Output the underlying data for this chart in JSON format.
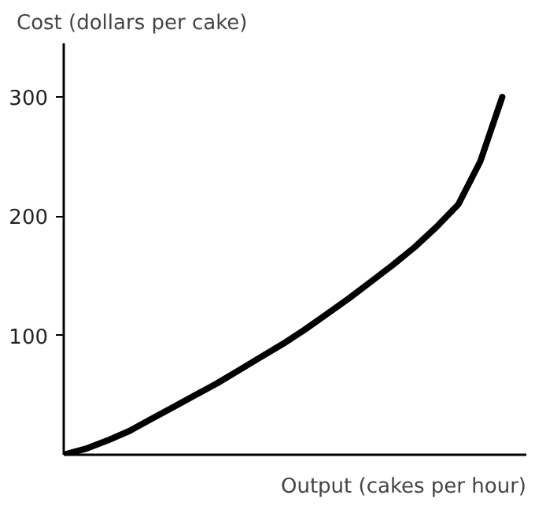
{
  "chart_data": {
    "type": "line",
    "xlabel": "Output (cakes per hour)",
    "ylabel": "Cost (dollars per cake)",
    "categories": [
      null,
      null,
      null,
      null,
      null,
      null,
      null,
      null,
      null,
      null,
      null,
      null,
      null,
      null,
      null,
      null,
      null,
      null,
      null,
      null,
      null
    ],
    "series": [
      {
        "color": "#000000",
        "values": [
          0,
          5,
          12,
          20,
          30,
          40,
          50,
          60,
          71,
          82,
          93,
          105,
          118,
          131,
          145,
          159,
          174,
          191,
          210,
          246,
          300
        ]
      }
    ],
    "ylim": [
      0,
      345
    ],
    "yticks": [
      100,
      200,
      300
    ],
    "tick_labels": "y",
    "grid": false,
    "marker": "none",
    "line_style": "solid"
  }
}
